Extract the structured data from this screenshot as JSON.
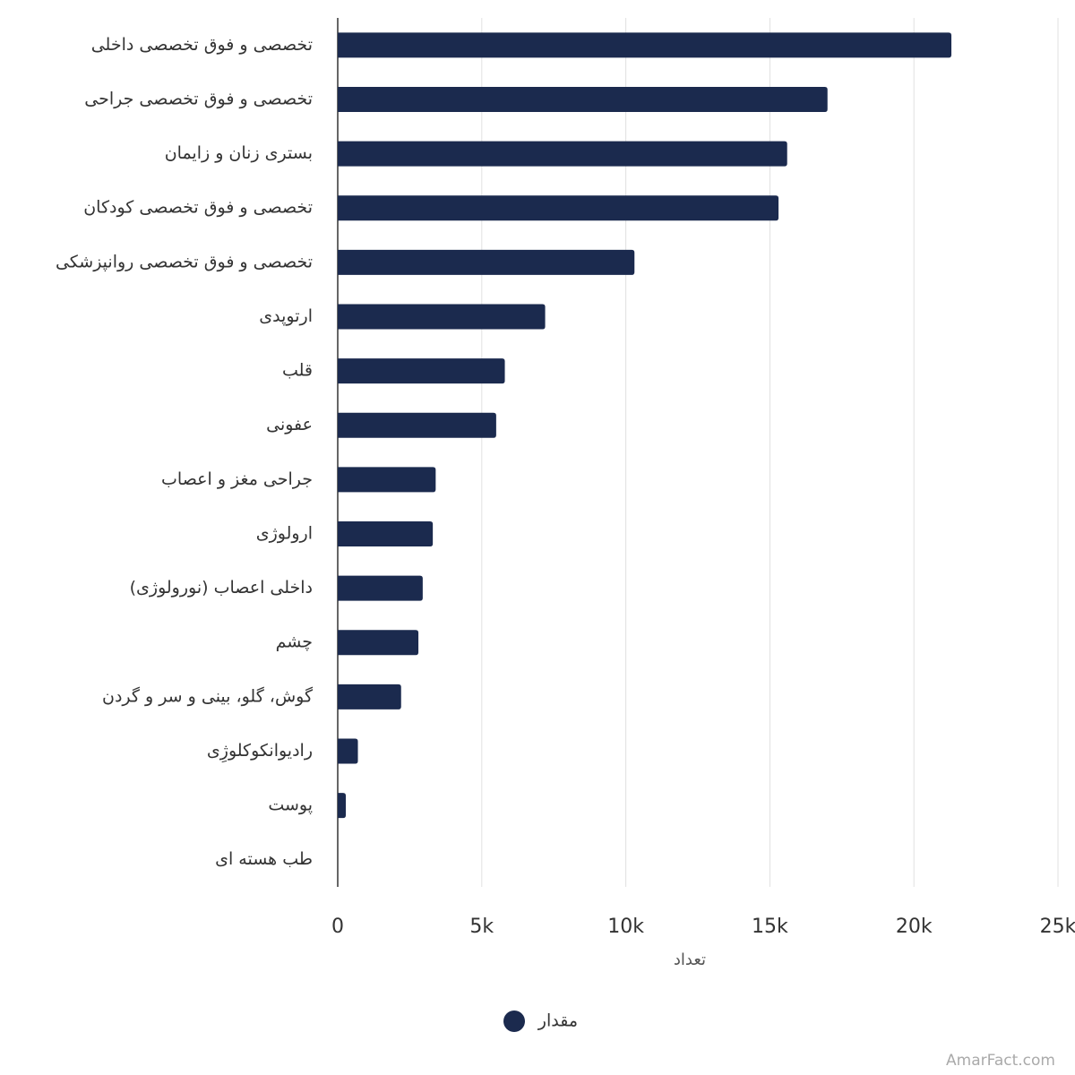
{
  "chart_data": {
    "type": "barh",
    "categories": [
      "تخصصی و فوق تخصصی داخلی",
      "تخصصی و فوق تخصصی جراحی",
      "بستری زنان و زایمان",
      "تخصصی و فوق تخصصی کودکان",
      "تخصصی و فوق تخصصی روانپزشکی",
      "ارتوپدی",
      "قلب",
      "عفونی",
      "جراحی مغز و اعصاب",
      "ارولوژی",
      "داخلی اعصاب (نورولوژی)",
      "چشم",
      "گوش، گلو، بینی و سر و گردن",
      "رادیوانکوکلوژِی",
      "پوست",
      "طب هسته ای"
    ],
    "series": [
      {
        "name": "مقدار",
        "color": "#1b2a4e",
        "values": [
          21300,
          17000,
          15600,
          15300,
          10300,
          7200,
          5800,
          5500,
          3400,
          3300,
          2950,
          2800,
          2200,
          700,
          280,
          0
        ]
      }
    ],
    "xlabel": "تعداد",
    "xlim": [
      0,
      25000
    ],
    "xticks": [
      0,
      {
        "value": 5000,
        "label": "5k"
      },
      {
        "value": 10000,
        "label": "10k"
      },
      {
        "value": 15000,
        "label": "15k"
      },
      {
        "value": 20000,
        "label": "20k"
      },
      {
        "value": 25000,
        "label": "25k"
      }
    ],
    "grid": true,
    "legend": "bottom",
    "watermark": "AmarFact.com"
  }
}
